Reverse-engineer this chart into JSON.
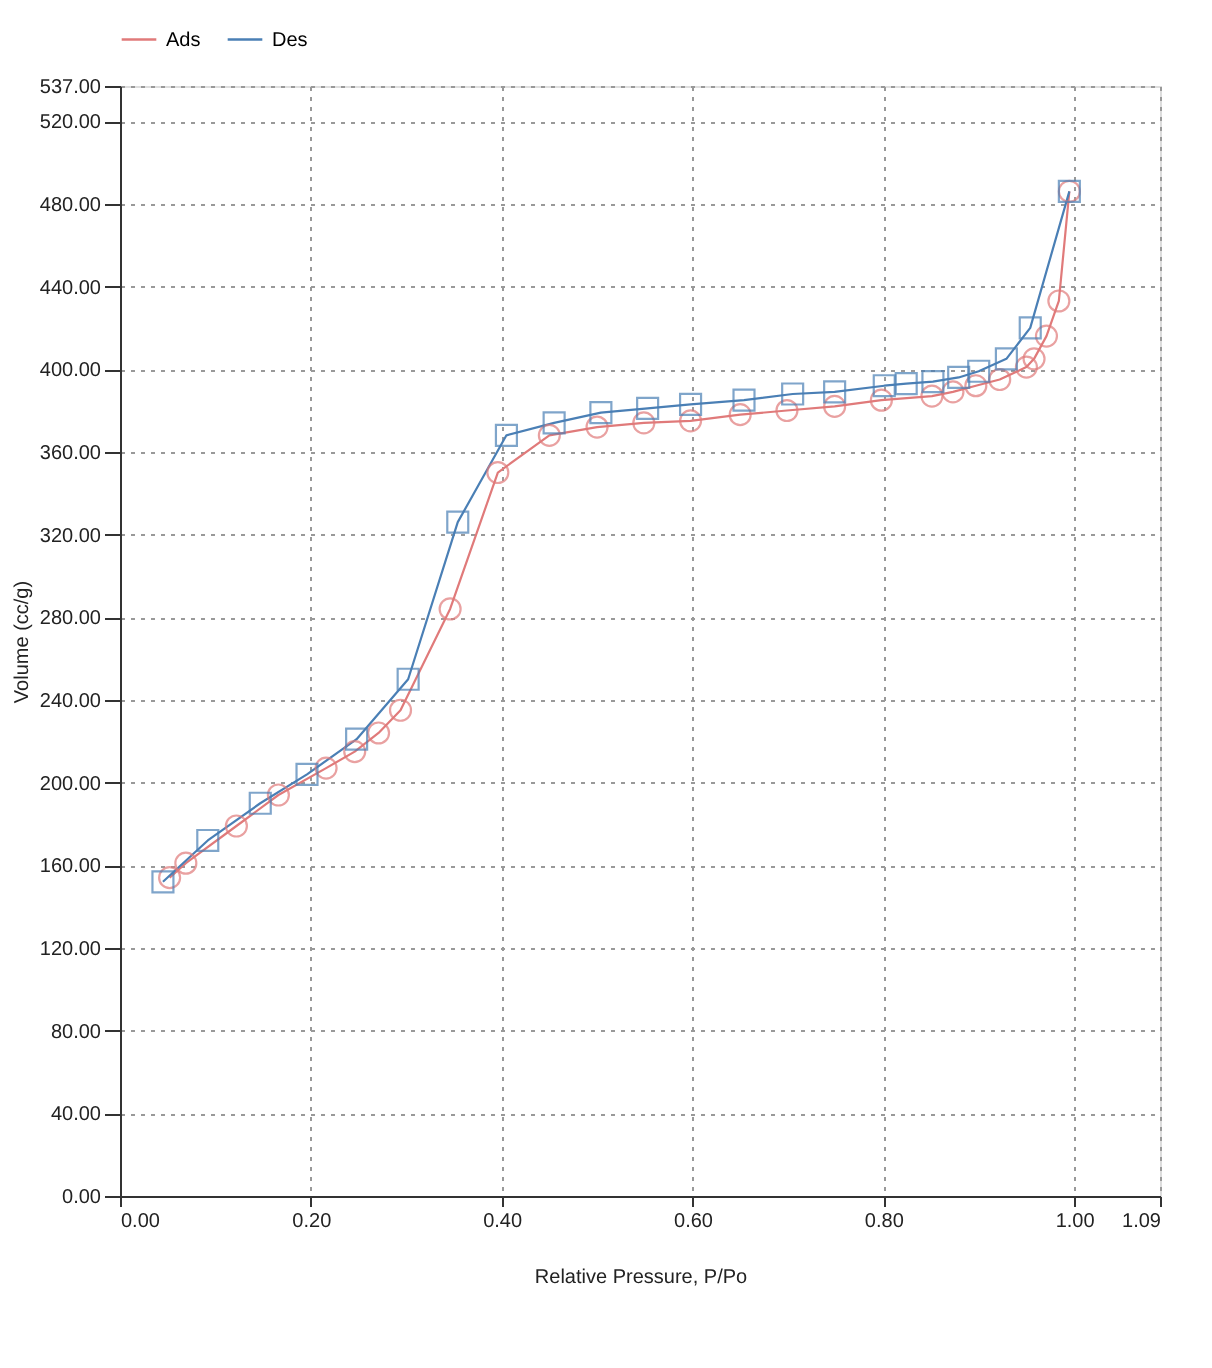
{
  "chart_data": {
    "type": "line",
    "xlabel": "Relative Pressure, P/Po",
    "ylabel": "Volume (cc/g)",
    "xlim": [
      0,
      1.09
    ],
    "ylim": [
      0,
      537
    ],
    "xticks": [
      {
        "value": 0,
        "label": "0.00"
      },
      {
        "value": 0.2,
        "label": "0.20"
      },
      {
        "value": 0.4,
        "label": "0.40"
      },
      {
        "value": 0.6,
        "label": "0.60"
      },
      {
        "value": 0.8,
        "label": "0.80"
      },
      {
        "value": 1.0,
        "label": "1.00"
      },
      {
        "value": 1.09,
        "label": "1.09"
      }
    ],
    "yticks": [
      {
        "value": 0,
        "label": "0.00"
      },
      {
        "value": 40,
        "label": "40.00"
      },
      {
        "value": 80,
        "label": "80.00"
      },
      {
        "value": 120,
        "label": "120.00"
      },
      {
        "value": 160,
        "label": "160.00"
      },
      {
        "value": 200,
        "label": "200.00"
      },
      {
        "value": 240,
        "label": "240.00"
      },
      {
        "value": 280,
        "label": "280.00"
      },
      {
        "value": 320,
        "label": "320.00"
      },
      {
        "value": 360,
        "label": "360.00"
      },
      {
        "value": 400,
        "label": "400.00"
      },
      {
        "value": 440,
        "label": "440.00"
      },
      {
        "value": 480,
        "label": "480.00"
      },
      {
        "value": 520,
        "label": "520.00"
      },
      {
        "value": 537,
        "label": "537.00"
      }
    ],
    "grid": true,
    "legend": "top left",
    "line_style": "solid",
    "series": [
      {
        "name": "Ads",
        "color": "#e07a7a",
        "marker": "circle",
        "x": [
          0.052,
          0.069,
          0.122,
          0.166,
          0.216,
          0.246,
          0.271,
          0.294,
          0.346,
          0.396,
          0.45,
          0.5,
          0.549,
          0.598,
          0.65,
          0.699,
          0.749,
          0.798,
          0.851,
          0.873,
          0.897,
          0.922,
          0.95,
          0.958,
          0.971,
          0.984,
          0.995
        ],
        "values": [
          154,
          161,
          179,
          194,
          207,
          215,
          224,
          235,
          284,
          350,
          368,
          372,
          374,
          375,
          378,
          380,
          382,
          385,
          387,
          389,
          392,
          395,
          401,
          405,
          416,
          433,
          486
        ]
      },
      {
        "name": "Des",
        "color": "#4a7fb5",
        "marker": "square",
        "x": [
          0.045,
          0.092,
          0.147,
          0.196,
          0.248,
          0.302,
          0.354,
          0.405,
          0.455,
          0.504,
          0.553,
          0.598,
          0.654,
          0.705,
          0.749,
          0.801,
          0.824,
          0.852,
          0.879,
          0.9,
          0.929,
          0.954,
          0.995
        ],
        "values": [
          152,
          172,
          190,
          204,
          221,
          250,
          326,
          368,
          374,
          379,
          381,
          383,
          385,
          388,
          389,
          392,
          393,
          394,
          396,
          399,
          405,
          420,
          486
        ]
      }
    ]
  }
}
